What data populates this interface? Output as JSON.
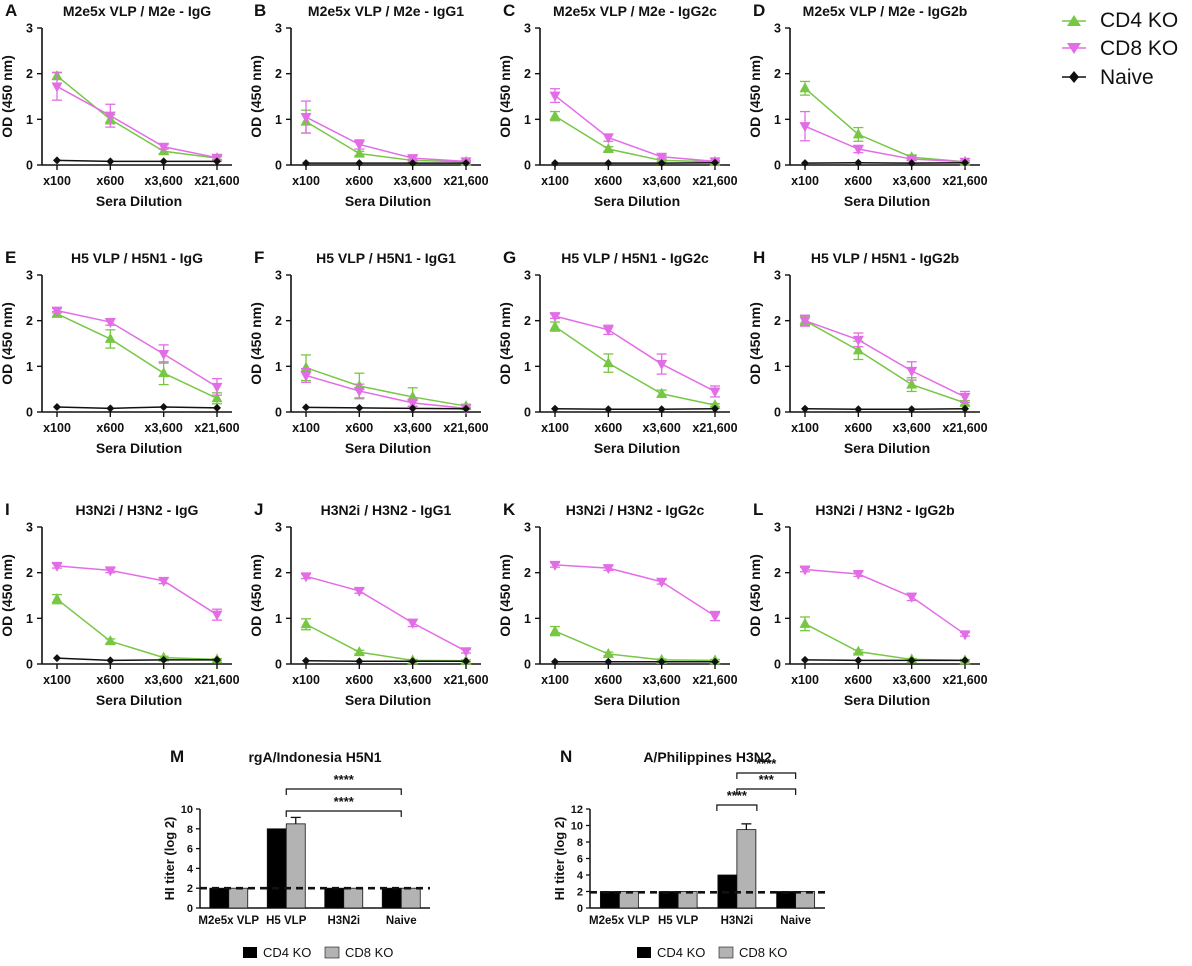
{
  "colors": {
    "cd4": "#77c744",
    "cd8": "#e36ce7",
    "naive": "#111111",
    "bar_cd4": "#000000",
    "bar_cd8": "#b3b3b3"
  },
  "legend": [
    "CD4 KO",
    "CD8 KO",
    "Naive"
  ],
  "chart_data": [
    {
      "id": "A",
      "type": "line",
      "title": "M2e5x VLP / M2e - IgG",
      "ylabel": "OD (450 nm)",
      "xlabel": "Sera Dilution",
      "categories": [
        "x100",
        "x600",
        "x3,600",
        "x21,600"
      ],
      "ylim": [
        0,
        3
      ],
      "yticks": [
        "0",
        "1",
        "2",
        "3"
      ],
      "series": [
        {
          "name": "CD4 KO",
          "values": [
            1.95,
            1.0,
            0.3,
            0.15
          ],
          "errors": [
            0.08,
            0.1,
            0.05,
            0.03
          ]
        },
        {
          "name": "CD8 KO",
          "values": [
            1.72,
            1.08,
            0.4,
            0.16
          ],
          "errors": [
            0.3,
            0.25,
            0.05,
            0.05
          ]
        },
        {
          "name": "Naive",
          "values": [
            0.1,
            0.08,
            0.08,
            0.08
          ],
          "errors": [
            0,
            0,
            0,
            0
          ]
        }
      ]
    },
    {
      "id": "B",
      "type": "line",
      "title": "M2e5x VLP / M2e - IgG1",
      "ylabel": "OD (450 nm)",
      "xlabel": "Sera Dilution",
      "categories": [
        "x100",
        "x600",
        "x3,600",
        "x21,600"
      ],
      "ylim": [
        0,
        3
      ],
      "yticks": [
        "0",
        "1",
        "2",
        "3"
      ],
      "series": [
        {
          "name": "CD4 KO",
          "values": [
            0.95,
            0.25,
            0.1,
            0.07
          ],
          "errors": [
            0.25,
            0.05,
            0.03,
            0.02
          ]
        },
        {
          "name": "CD8 KO",
          "values": [
            1.05,
            0.45,
            0.15,
            0.08
          ],
          "errors": [
            0.35,
            0.1,
            0.05,
            0.02
          ]
        },
        {
          "name": "Naive",
          "values": [
            0.04,
            0.04,
            0.04,
            0.04
          ],
          "errors": [
            0,
            0,
            0,
            0
          ]
        }
      ]
    },
    {
      "id": "C",
      "type": "line",
      "title": "M2e5x VLP / M2e - IgG2c",
      "ylabel": "OD (450 nm)",
      "xlabel": "Sera Dilution",
      "categories": [
        "x100",
        "x600",
        "x3,600",
        "x21,600"
      ],
      "ylim": [
        0,
        3
      ],
      "yticks": [
        "0",
        "1",
        "2",
        "3"
      ],
      "series": [
        {
          "name": "CD4 KO",
          "values": [
            1.07,
            0.35,
            0.1,
            0.07
          ],
          "errors": [
            0.1,
            0.05,
            0.02,
            0.02
          ]
        },
        {
          "name": "CD8 KO",
          "values": [
            1.52,
            0.6,
            0.18,
            0.08
          ],
          "errors": [
            0.15,
            0.08,
            0.03,
            0.02
          ]
        },
        {
          "name": "Naive",
          "values": [
            0.04,
            0.04,
            0.04,
            0.05
          ],
          "errors": [
            0,
            0,
            0,
            0
          ]
        }
      ]
    },
    {
      "id": "D",
      "type": "line",
      "title": "M2e5x VLP / M2e - IgG2b",
      "ylabel": "OD (450 nm)",
      "xlabel": "Sera Dilution",
      "categories": [
        "x100",
        "x600",
        "x3,600",
        "x21,600"
      ],
      "ylim": [
        0,
        3
      ],
      "yticks": [
        "0",
        "1",
        "2",
        "3"
      ],
      "series": [
        {
          "name": "CD4 KO",
          "values": [
            1.68,
            0.67,
            0.17,
            0.07
          ],
          "errors": [
            0.15,
            0.15,
            0.05,
            0.02
          ]
        },
        {
          "name": "CD8 KO",
          "values": [
            0.85,
            0.35,
            0.13,
            0.07
          ],
          "errors": [
            0.32,
            0.08,
            0.03,
            0.02
          ]
        },
        {
          "name": "Naive",
          "values": [
            0.04,
            0.05,
            0.04,
            0.05
          ],
          "errors": [
            0,
            0,
            0,
            0
          ]
        }
      ]
    },
    {
      "id": "E",
      "type": "line",
      "title": "H5 VLP / H5N1 - IgG",
      "ylabel": "OD (450 nm)",
      "xlabel": "Sera Dilution",
      "categories": [
        "x100",
        "x600",
        "x3,600",
        "x21,600"
      ],
      "ylim": [
        0,
        3
      ],
      "yticks": [
        "0",
        "1",
        "2",
        "3"
      ],
      "series": [
        {
          "name": "CD4 KO",
          "values": [
            2.15,
            1.6,
            0.85,
            0.3
          ],
          "errors": [
            0.05,
            0.2,
            0.25,
            0.12
          ]
        },
        {
          "name": "CD8 KO",
          "values": [
            2.22,
            1.97,
            1.27,
            0.55
          ],
          "errors": [
            0.05,
            0.07,
            0.2,
            0.18
          ]
        },
        {
          "name": "Naive",
          "values": [
            0.11,
            0.08,
            0.11,
            0.09
          ],
          "errors": [
            0,
            0,
            0,
            0
          ]
        }
      ]
    },
    {
      "id": "F",
      "type": "line",
      "title": "H5 VLP / H5N1 - IgG1",
      "ylabel": "OD (450 nm)",
      "xlabel": "Sera Dilution",
      "categories": [
        "x100",
        "x600",
        "x3,600",
        "x21,600"
      ],
      "ylim": [
        0,
        3
      ],
      "yticks": [
        "0",
        "1",
        "2",
        "3"
      ],
      "series": [
        {
          "name": "CD4 KO",
          "values": [
            0.97,
            0.57,
            0.33,
            0.13
          ],
          "errors": [
            0.28,
            0.28,
            0.2,
            0.04
          ]
        },
        {
          "name": "CD8 KO",
          "values": [
            0.8,
            0.46,
            0.2,
            0.08
          ],
          "errors": [
            0.15,
            0.15,
            0.08,
            0.02
          ]
        },
        {
          "name": "Naive",
          "values": [
            0.1,
            0.09,
            0.08,
            0.07
          ],
          "errors": [
            0,
            0,
            0,
            0
          ]
        }
      ]
    },
    {
      "id": "G",
      "type": "line",
      "title": "H5 VLP / H5N1 - IgG2c",
      "ylabel": "OD (450 nm)",
      "xlabel": "Sera Dilution",
      "categories": [
        "x100",
        "x600",
        "x3,600",
        "x21,600"
      ],
      "ylim": [
        0,
        3
      ],
      "yticks": [
        "0",
        "1",
        "2",
        "3"
      ],
      "series": [
        {
          "name": "CD4 KO",
          "values": [
            1.87,
            1.07,
            0.4,
            0.15
          ],
          "errors": [
            0.1,
            0.2,
            0.08,
            0.03
          ]
        },
        {
          "name": "CD8 KO",
          "values": [
            2.1,
            1.8,
            1.05,
            0.45
          ],
          "errors": [
            0.05,
            0.1,
            0.22,
            0.12
          ]
        },
        {
          "name": "Naive",
          "values": [
            0.07,
            0.06,
            0.06,
            0.07
          ],
          "errors": [
            0,
            0,
            0,
            0
          ]
        }
      ]
    },
    {
      "id": "H",
      "type": "line",
      "title": "H5 VLP / H5N1 - IgG2b",
      "ylabel": "OD (450 nm)",
      "xlabel": "Sera Dilution",
      "categories": [
        "x100",
        "x600",
        "x3,600",
        "x21,600"
      ],
      "ylim": [
        0,
        3
      ],
      "yticks": [
        "0",
        "1",
        "2",
        "3"
      ],
      "series": [
        {
          "name": "CD4 KO",
          "values": [
            2.0,
            1.35,
            0.6,
            0.2
          ],
          "errors": [
            0.1,
            0.2,
            0.15,
            0.05
          ]
        },
        {
          "name": "CD8 KO",
          "values": [
            2.0,
            1.58,
            0.9,
            0.33
          ],
          "errors": [
            0.12,
            0.15,
            0.2,
            0.12
          ]
        },
        {
          "name": "Naive",
          "values": [
            0.07,
            0.06,
            0.06,
            0.07
          ],
          "errors": [
            0,
            0,
            0,
            0
          ]
        }
      ]
    },
    {
      "id": "I",
      "type": "line",
      "title": "H3N2i / H3N2 - IgG",
      "ylabel": "OD (450 nm)",
      "xlabel": "Sera Dilution",
      "categories": [
        "x100",
        "x600",
        "x3,600",
        "x21,600"
      ],
      "ylim": [
        0,
        3
      ],
      "yticks": [
        "0",
        "1",
        "2",
        "3"
      ],
      "series": [
        {
          "name": "CD4 KO",
          "values": [
            1.42,
            0.5,
            0.14,
            0.1
          ],
          "errors": [
            0.1,
            0.05,
            0.03,
            0.02
          ]
        },
        {
          "name": "CD8 KO",
          "values": [
            2.15,
            2.05,
            1.82,
            1.08
          ],
          "errors": [
            0.05,
            0.05,
            0.06,
            0.12
          ]
        },
        {
          "name": "Naive",
          "values": [
            0.13,
            0.08,
            0.09,
            0.09
          ],
          "errors": [
            0,
            0,
            0,
            0
          ]
        }
      ]
    },
    {
      "id": "J",
      "type": "line",
      "title": "H3N2i / H3N2 - IgG1",
      "ylabel": "OD (450 nm)",
      "xlabel": "Sera Dilution",
      "categories": [
        "x100",
        "x600",
        "x3,600",
        "x21,600"
      ],
      "ylim": [
        0,
        3
      ],
      "yticks": [
        "0",
        "1",
        "2",
        "3"
      ],
      "series": [
        {
          "name": "CD4 KO",
          "values": [
            0.87,
            0.26,
            0.08,
            0.07
          ],
          "errors": [
            0.12,
            0.04,
            0.02,
            0.02
          ]
        },
        {
          "name": "CD8 KO",
          "values": [
            1.92,
            1.6,
            0.9,
            0.28
          ],
          "errors": [
            0.05,
            0.05,
            0.08,
            0.04
          ]
        },
        {
          "name": "Naive",
          "values": [
            0.07,
            0.06,
            0.06,
            0.06
          ],
          "errors": [
            0,
            0,
            0,
            0
          ]
        }
      ]
    },
    {
      "id": "K",
      "type": "line",
      "title": "H3N2i / H3N2 - IgG2c",
      "ylabel": "OD (450 nm)",
      "xlabel": "Sera Dilution",
      "categories": [
        "x100",
        "x600",
        "x3,600",
        "x21,600"
      ],
      "ylim": [
        0,
        3
      ],
      "yticks": [
        "0",
        "1",
        "2",
        "3"
      ],
      "series": [
        {
          "name": "CD4 KO",
          "values": [
            0.72,
            0.22,
            0.09,
            0.08
          ],
          "errors": [
            0.1,
            0.04,
            0.02,
            0.02
          ]
        },
        {
          "name": "CD8 KO",
          "values": [
            2.17,
            2.1,
            1.8,
            1.05
          ],
          "errors": [
            0.05,
            0.05,
            0.05,
            0.1
          ]
        },
        {
          "name": "Naive",
          "values": [
            0.05,
            0.05,
            0.05,
            0.05
          ],
          "errors": [
            0,
            0,
            0,
            0
          ]
        }
      ]
    },
    {
      "id": "L",
      "type": "line",
      "title": "H3N2i / H3N2 - IgG2b",
      "ylabel": "OD (450 nm)",
      "xlabel": "Sera Dilution",
      "categories": [
        "x100",
        "x600",
        "x3,600",
        "x21,600"
      ],
      "ylim": [
        0,
        3
      ],
      "yticks": [
        "0",
        "1",
        "2",
        "3"
      ],
      "series": [
        {
          "name": "CD4 KO",
          "values": [
            0.88,
            0.27,
            0.1,
            0.08
          ],
          "errors": [
            0.15,
            0.04,
            0.02,
            0.02
          ]
        },
        {
          "name": "CD8 KO",
          "values": [
            2.07,
            1.97,
            1.47,
            0.65
          ],
          "errors": [
            0.05,
            0.05,
            0.08,
            0.04
          ]
        },
        {
          "name": "Naive",
          "values": [
            0.09,
            0.08,
            0.08,
            0.08
          ],
          "errors": [
            0,
            0,
            0,
            0
          ]
        }
      ]
    },
    {
      "id": "M",
      "type": "bar",
      "title": "rgA/Indonesia H5N1",
      "ylabel": "HI titer (log 2)",
      "categories": [
        "M2e5x VLP",
        "H5 VLP",
        "H3N2i",
        "Naive"
      ],
      "ylim": [
        0,
        10
      ],
      "yticks": [
        "0",
        "2",
        "4",
        "6",
        "8",
        "10"
      ],
      "baseline": 2,
      "series": [
        {
          "name": "CD4 KO",
          "values": [
            2,
            8,
            2,
            2
          ],
          "errors": [
            0,
            0,
            0,
            0
          ]
        },
        {
          "name": "CD8 KO",
          "values": [
            2,
            8.5,
            2,
            2
          ],
          "errors": [
            0,
            0.65,
            0,
            0
          ]
        }
      ],
      "significance": [
        {
          "from": 1,
          "to": 3,
          "level": 1,
          "label": "****"
        },
        {
          "from": 1,
          "to": 3,
          "level": 2,
          "label": "****"
        }
      ]
    },
    {
      "id": "N",
      "type": "bar",
      "title": "A/Philippines H3N2",
      "ylabel": "HI titer (log 2)",
      "categories": [
        "M2e5x VLP",
        "H5 VLP",
        "H3N2i",
        "Naive"
      ],
      "ylim": [
        0,
        12
      ],
      "yticks": [
        "0",
        "2",
        "4",
        "6",
        "8",
        "10",
        "12"
      ],
      "baseline": 1.9,
      "series": [
        {
          "name": "CD4 KO",
          "values": [
            2,
            2,
            4,
            2
          ],
          "errors": [
            0,
            0,
            0,
            0
          ]
        },
        {
          "name": "CD8 KO",
          "values": [
            2,
            2,
            9.5,
            2
          ],
          "errors": [
            0,
            0,
            0.7,
            0
          ]
        }
      ],
      "significance": [
        {
          "from": 2,
          "to": 2,
          "level": 1,
          "label": "****"
        },
        {
          "from": 2,
          "to": 3,
          "level": 2,
          "label": "***"
        },
        {
          "from": 2,
          "to": 3,
          "level": 3,
          "label": "****"
        }
      ]
    }
  ]
}
